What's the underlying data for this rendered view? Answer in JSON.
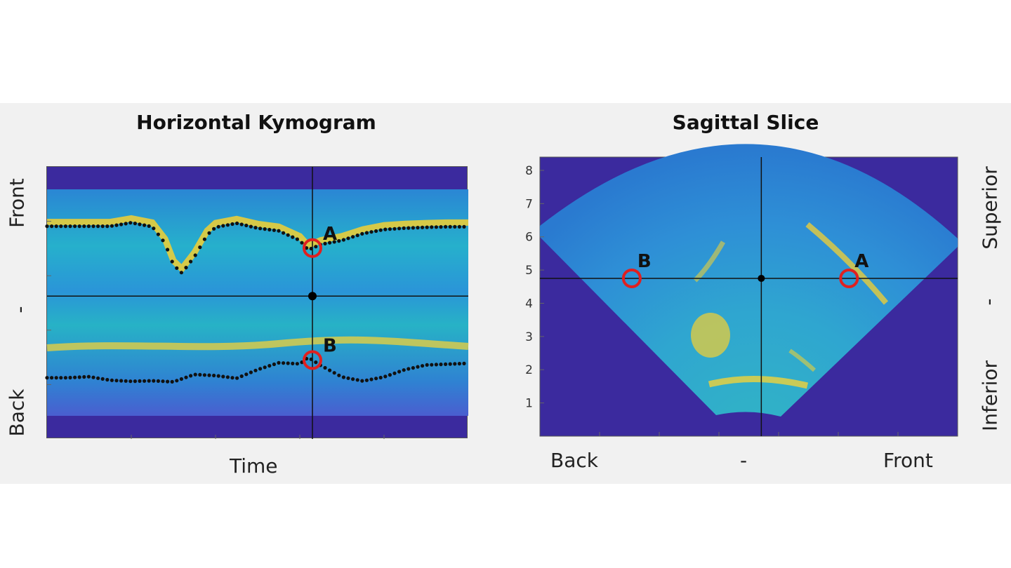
{
  "colors": {
    "background_dark": "#3b2a9e",
    "field_blue": "#2f8fd8",
    "field_cyan": "#26b9c8",
    "highlight_yellow": "#f5d030",
    "marker_red": "#e02020",
    "crosshair": "#111111"
  },
  "chart_data": [
    {
      "type": "heatmap",
      "title": "Horizontal Kymogram",
      "xlabel": "Time",
      "y_side_labels": {
        "top": "Front",
        "middle": "-",
        "bottom": "Back"
      },
      "markers": [
        {
          "label": "A"
        },
        {
          "label": "B"
        }
      ],
      "tracked_curves": [
        {
          "name": "front",
          "x": [
            0,
            5,
            10,
            15,
            20,
            25,
            28,
            30,
            32,
            35,
            38,
            40,
            45,
            50,
            55,
            60,
            62,
            65,
            70,
            75,
            80,
            85,
            90,
            95,
            100
          ],
          "y": [
            78.2,
            78.2,
            78.2,
            78.2,
            79.5,
            78,
            72,
            64,
            61,
            67,
            75,
            77.8,
            79.3,
            77.5,
            76.5,
            73,
            69.5,
            71.5,
            73,
            75.5,
            77,
            77.5,
            77.8,
            78,
            78
          ]
        },
        {
          "name": "back",
          "x": [
            0,
            5,
            10,
            15,
            20,
            25,
            30,
            35,
            40,
            45,
            50,
            55,
            60,
            62,
            65,
            70,
            75,
            80,
            85,
            90,
            95,
            100
          ],
          "y": [
            22.5,
            22.5,
            22.9,
            21.6,
            21.2,
            21.4,
            21,
            23.7,
            23.3,
            22.3,
            25.5,
            28,
            27.6,
            30,
            27,
            22.8,
            21.3,
            22.8,
            25.5,
            27.2,
            27.5,
            27.8
          ]
        }
      ],
      "crosshair": {
        "x": 63,
        "y": 52.5
      }
    },
    {
      "type": "heatmap",
      "title": "Sagittal Slice",
      "yticks": [
        1,
        2,
        3,
        4,
        5,
        6,
        7,
        8
      ],
      "ylim": [
        0,
        8.4
      ],
      "x_labels": {
        "left": "Back",
        "middle": "-",
        "right": "Front"
      },
      "y_side_labels": {
        "top": "Superior",
        "middle": "-",
        "bottom": "Inferior"
      },
      "markers": [
        {
          "label": "B",
          "x": 0.22,
          "y": 4.75
        },
        {
          "label": "A",
          "x": 0.74,
          "y": 4.75
        }
      ],
      "crosshair": {
        "x": 0.53,
        "y": 4.75
      }
    }
  ]
}
